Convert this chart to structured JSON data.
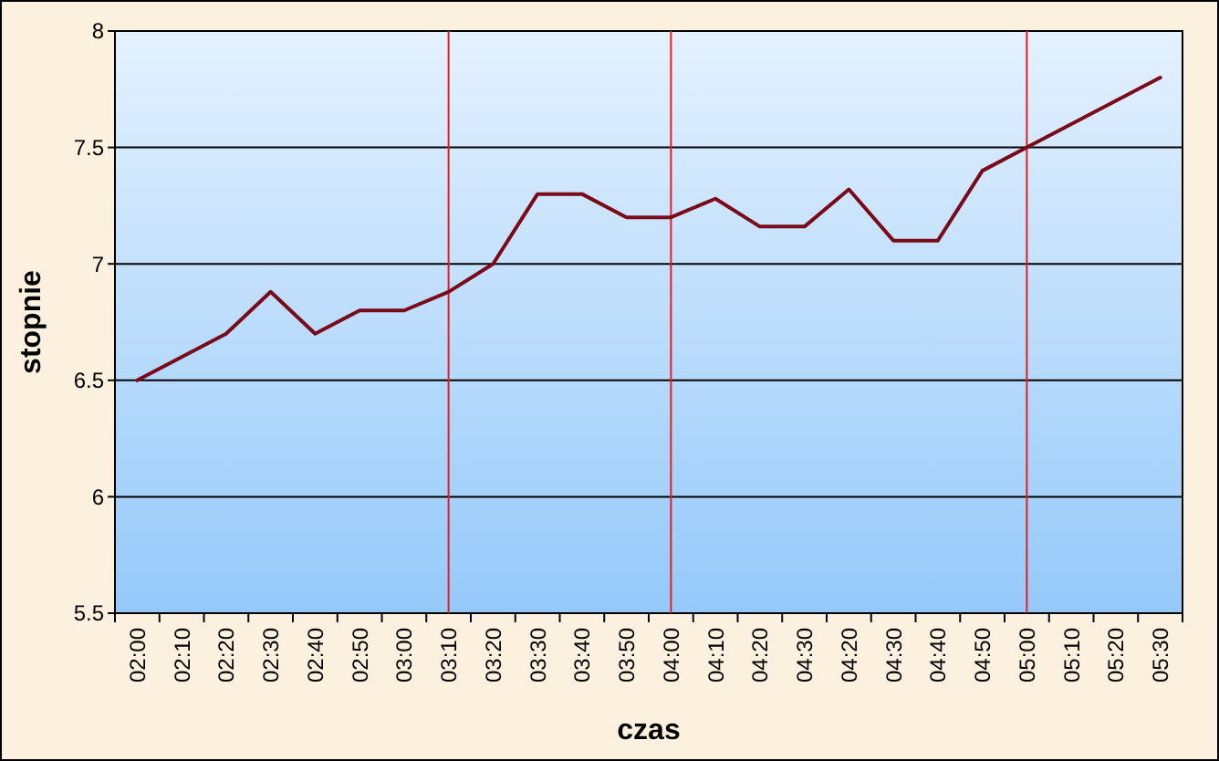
{
  "chart_data": {
    "type": "line",
    "xlabel": "czas",
    "ylabel": "stopnie",
    "categories": [
      "02:00",
      "02:10",
      "02:20",
      "02:30",
      "02:40",
      "02:50",
      "03:00",
      "03:10",
      "03:20",
      "03:30",
      "03:40",
      "03:50",
      "04:00",
      "04:10",
      "04:20",
      "04:30",
      "04:20",
      "04:30",
      "04:40",
      "04:50",
      "05:00",
      "05:10",
      "05:20",
      "05:30"
    ],
    "series": [
      {
        "color": "#7a0a1a",
        "values": [
          6.5,
          6.6,
          6.7,
          6.88,
          6.7,
          6.8,
          6.8,
          6.88,
          7.0,
          7.3,
          7.3,
          7.2,
          7.2,
          7.28,
          7.16,
          7.16,
          7.32,
          7.1,
          7.1,
          7.4,
          7.5,
          7.6,
          7.7,
          7.8
        ]
      }
    ],
    "ylim": [
      5.5,
      8
    ],
    "yticks": [
      5.5,
      6,
      6.5,
      7,
      7.5,
      8
    ],
    "grid": "y",
    "marker": "none",
    "line_style": "solid",
    "ref_lines": [
      {
        "axis": "x",
        "value": "03:10",
        "color": "#e02020"
      },
      {
        "axis": "x",
        "value": "04:00",
        "color": "#e02020"
      },
      {
        "axis": "x",
        "value": "05:00",
        "color": "#e02020"
      }
    ]
  }
}
